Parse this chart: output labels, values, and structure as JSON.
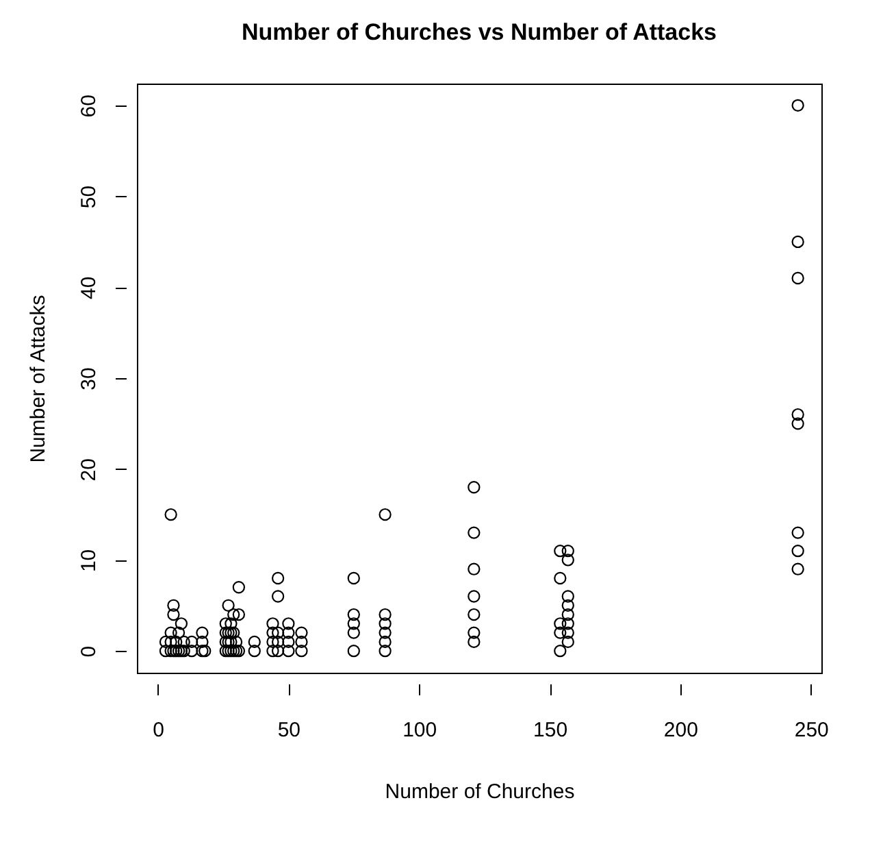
{
  "chart_data": {
    "type": "scatter",
    "title": "Number of Churches vs Number of Attacks",
    "xlabel": "Number of Churches",
    "ylabel": "Number of Attacks",
    "x": [
      3,
      3,
      5,
      5,
      5,
      5,
      6,
      6,
      6,
      7,
      7,
      8,
      8,
      9,
      9,
      10,
      10,
      13,
      13,
      17,
      17,
      17,
      18,
      26,
      26,
      26,
      26,
      27,
      27,
      27,
      27,
      28,
      28,
      28,
      28,
      29,
      29,
      29,
      30,
      30,
      31,
      31,
      31,
      37,
      37,
      44,
      44,
      44,
      44,
      46,
      46,
      46,
      46,
      46,
      50,
      50,
      50,
      50,
      55,
      55,
      55,
      75,
      75,
      75,
      75,
      75,
      87,
      87,
      87,
      87,
      87,
      87,
      121,
      121,
      121,
      121,
      121,
      121,
      121,
      154,
      154,
      154,
      154,
      154,
      157,
      157,
      157,
      157,
      157,
      157,
      157,
      157,
      245,
      245,
      245,
      245,
      245,
      245,
      245,
      245
    ],
    "values": [
      0,
      1,
      0,
      1,
      2,
      15,
      4,
      5,
      0,
      0,
      1,
      0,
      2,
      3,
      0,
      0,
      1,
      0,
      1,
      0,
      1,
      2,
      0,
      0,
      1,
      2,
      3,
      5,
      0,
      1,
      2,
      0,
      1,
      2,
      3,
      4,
      2,
      0,
      1,
      0,
      7,
      4,
      0,
      0,
      1,
      0,
      1,
      2,
      3,
      8,
      6,
      0,
      1,
      2,
      3,
      2,
      1,
      0,
      0,
      1,
      2,
      8,
      4,
      3,
      2,
      0,
      15,
      4,
      3,
      2,
      1,
      0,
      18,
      13,
      9,
      6,
      4,
      2,
      1,
      11,
      8,
      3,
      2,
      0,
      11,
      10,
      6,
      5,
      4,
      3,
      2,
      1,
      60,
      45,
      41,
      26,
      25,
      13,
      11,
      9
    ],
    "color": "#000000",
    "marker": "circle",
    "grid": false,
    "xlim": [
      -8,
      254
    ],
    "xticks": [
      0,
      50,
      100,
      150,
      200,
      250
    ],
    "ylim": [
      -2.4,
      62.4
    ],
    "yticks": [
      0,
      10,
      20,
      30,
      40,
      50,
      60
    ]
  }
}
